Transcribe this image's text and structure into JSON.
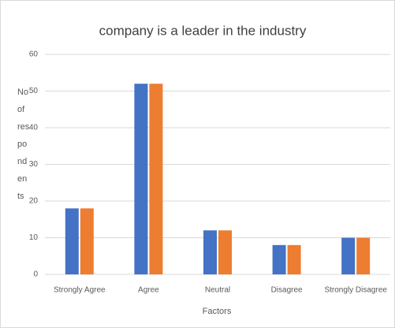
{
  "chart_data": {
    "type": "bar",
    "title": "company is a leader in the industry",
    "xlabel": "Factors",
    "ylabel": [
      "No",
      "of",
      "res",
      "po",
      "nd",
      "en",
      "ts"
    ],
    "categories": [
      "Strongly Agree",
      "Agree",
      "Neutral",
      "Disagree",
      "Strongly Disagree"
    ],
    "series": [
      {
        "color": "#4472c4",
        "values": [
          18,
          52,
          12,
          8,
          10
        ]
      },
      {
        "color": "#ed7d31",
        "values": [
          18,
          52,
          12,
          8,
          10
        ]
      }
    ],
    "ylim": [
      0,
      60
    ],
    "yticks": [
      0,
      10,
      20,
      30,
      40,
      50,
      60
    ],
    "grid": true
  }
}
